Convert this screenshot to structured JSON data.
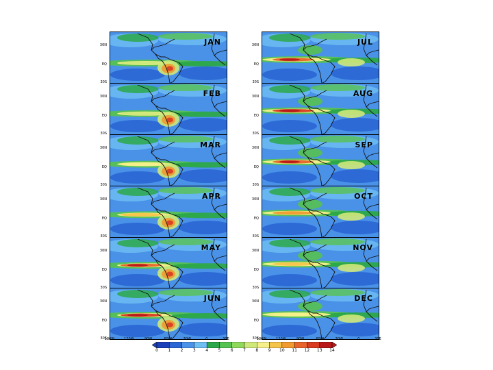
{
  "figure": {
    "panels": [
      {
        "month": "JAN",
        "column": "left"
      },
      {
        "month": "FEB",
        "column": "left"
      },
      {
        "month": "MAR",
        "column": "left"
      },
      {
        "month": "APR",
        "column": "left"
      },
      {
        "month": "MAY",
        "column": "left"
      },
      {
        "month": "JUN",
        "column": "left"
      },
      {
        "month": "JUL",
        "column": "right"
      },
      {
        "month": "AUG",
        "column": "right"
      },
      {
        "month": "SEP",
        "column": "right"
      },
      {
        "month": "OCT",
        "column": "right"
      },
      {
        "month": "NOV",
        "column": "right"
      },
      {
        "month": "DEC",
        "column": "right"
      }
    ],
    "lat_ticks": [
      "30N",
      "EQ",
      "30S"
    ],
    "lon_ticks": [
      "180W",
      "120W",
      "90W",
      "60W",
      "30W",
      "0",
      "30E"
    ],
    "colorbar": {
      "ticks": [
        "0",
        "1",
        "2",
        "3",
        "4",
        "5",
        "6",
        "7",
        "8",
        "9",
        "10",
        "11",
        "12",
        "13",
        "14"
      ],
      "colors": [
        "#1a3fb8",
        "#2a66d4",
        "#4a92e8",
        "#6fbff2",
        "#2ca84a",
        "#56c251",
        "#8ed85a",
        "#cfe87a",
        "#f5f08a",
        "#f5c44a",
        "#f09a30",
        "#e8642a",
        "#d83a22",
        "#b81818"
      ]
    }
  }
}
